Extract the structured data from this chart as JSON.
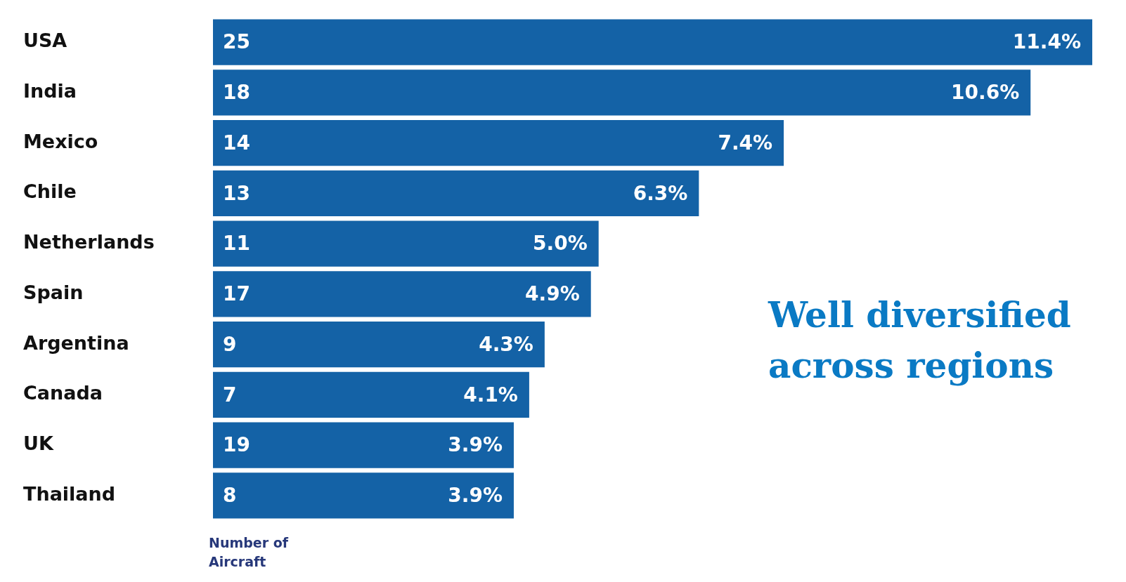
{
  "chart_data": {
    "type": "bar",
    "orientation": "horizontal",
    "title": "Well diversified across regions",
    "categories": [
      "USA",
      "India",
      "Mexico",
      "Chile",
      "Netherlands",
      "Spain",
      "Argentina",
      "Canada",
      "UK",
      "Thailand"
    ],
    "values": [
      11.4,
      10.6,
      7.4,
      6.3,
      5.0,
      4.9,
      4.3,
      4.1,
      3.9,
      3.9
    ],
    "value_labels": [
      "11.4%",
      "10.6%",
      "7.4%",
      "6.3%",
      "5.0%",
      "4.9%",
      "4.3%",
      "4.1%",
      "3.9%",
      "3.9%"
    ],
    "color": "#1462a6",
    "grid": false,
    "legend": false,
    "tick_labels": "y",
    "annotations": [
      {
        "text": "25",
        "y": "USA"
      },
      {
        "text": "18",
        "y": "India"
      },
      {
        "text": "14",
        "y": "Mexico"
      },
      {
        "text": "13",
        "y": "Chile"
      },
      {
        "text": "11",
        "y": "Netherlands"
      },
      {
        "text": "17",
        "y": "Spain"
      },
      {
        "text": "9",
        "y": "Argentina"
      },
      {
        "text": "7",
        "y": "Canada"
      },
      {
        "text": "19",
        "y": "UK"
      },
      {
        "text": "8",
        "y": "Thailand"
      },
      "Number of Aircraft"
    ]
  }
}
